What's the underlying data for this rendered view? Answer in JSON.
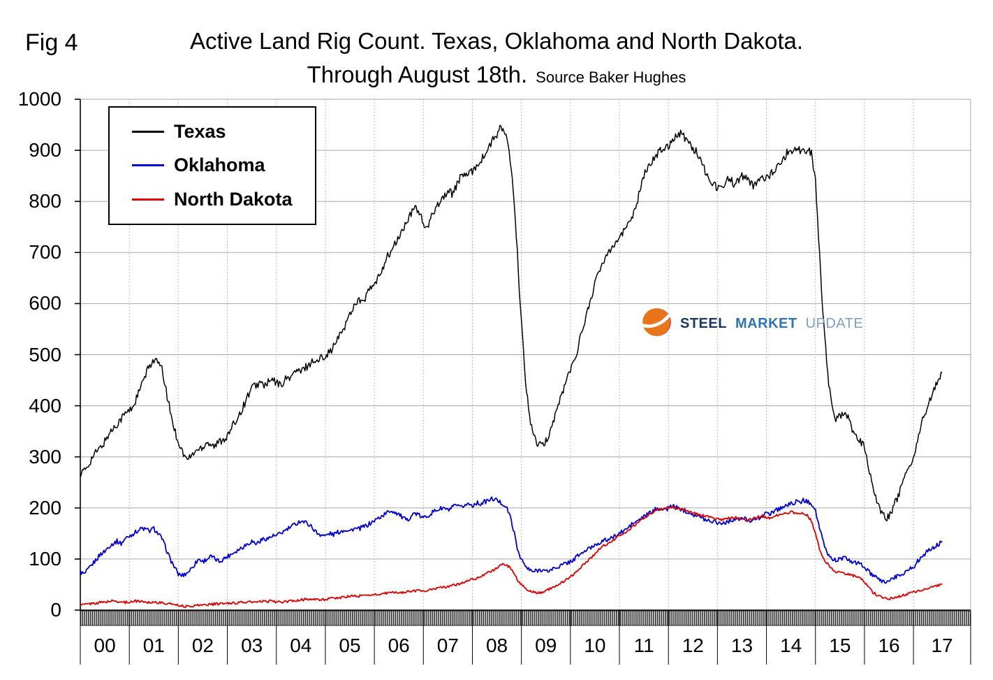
{
  "header": {
    "fig_label": "Fig 4",
    "title_line1": "Active Land Rig Count. Texas, Oklahoma and North Dakota.",
    "title_line2": "Through August 18th.",
    "source": "Source Baker Hughes"
  },
  "watermark": {
    "steel": "STEEL",
    "market": "MARKET",
    "update": "UPDATE",
    "colors": {
      "steel": "#17375E",
      "market": "#2E74B5",
      "update": "#7F9FC6",
      "icon_orange": "#E8751A",
      "icon_red": "#C0272D"
    }
  },
  "chart_data": {
    "type": "line",
    "title": "Active Land Rig Count. Texas, Oklahoma and North Dakota. Through August 18th.",
    "source": "Baker Hughes",
    "ylim": [
      0,
      1000
    ],
    "yticks": [
      0,
      100,
      200,
      300,
      400,
      500,
      600,
      700,
      800,
      900,
      1000
    ],
    "x_tick_labels": [
      "00",
      "01",
      "02",
      "03",
      "04",
      "05",
      "06",
      "07",
      "08",
      "09",
      "10",
      "11",
      "12",
      "13",
      "14",
      "15",
      "16",
      "17"
    ],
    "x_axis": {
      "start_month": "2000-01",
      "end_month": "2017-08",
      "frequency": "monthly",
      "n_points": 212,
      "axis_total_months": 218
    },
    "grid": {
      "horizontal": true,
      "vertical_dotted_per_year": true,
      "color": "#A8A8A8"
    },
    "legend": {
      "position": "top-left",
      "border": true
    },
    "series": [
      {
        "name": "Texas",
        "color": "#000000",
        "values": [
          268,
          272,
          285,
          300,
          310,
          318,
          330,
          345,
          355,
          365,
          375,
          385,
          390,
          400,
          420,
          440,
          460,
          480,
          490,
          485,
          470,
          430,
          390,
          355,
          330,
          310,
          295,
          300,
          310,
          315,
          320,
          330,
          325,
          320,
          330,
          335,
          340,
          355,
          370,
          385,
          400,
          420,
          435,
          440,
          445,
          440,
          445,
          450,
          445,
          440,
          450,
          455,
          460,
          470,
          465,
          475,
          480,
          490,
          485,
          495,
          500,
          505,
          515,
          530,
          545,
          560,
          580,
          595,
          610,
          600,
          615,
          630,
          635,
          650,
          670,
          690,
          700,
          715,
          730,
          745,
          760,
          775,
          790,
          780,
          755,
          745,
          770,
          790,
          800,
          810,
          820,
          815,
          830,
          845,
          855,
          850,
          860,
          870,
          880,
          890,
          905,
          920,
          930,
          945,
          935,
          900,
          820,
          700,
          560,
          450,
          380,
          340,
          325,
          320,
          330,
          350,
          375,
          400,
          425,
          450,
          470,
          490,
          520,
          550,
          580,
          610,
          640,
          660,
          680,
          700,
          710,
          720,
          730,
          740,
          755,
          770,
          790,
          820,
          850,
          870,
          880,
          890,
          900,
          905,
          910,
          920,
          930,
          935,
          925,
          915,
          905,
          895,
          880,
          860,
          845,
          835,
          825,
          830,
          840,
          845,
          835,
          840,
          850,
          845,
          835,
          830,
          840,
          850,
          845,
          855,
          860,
          870,
          880,
          895,
          900,
          905,
          900,
          905,
          900,
          895,
          840,
          700,
          560,
          460,
          400,
          375,
          380,
          390,
          375,
          355,
          340,
          330,
          320,
          280,
          245,
          215,
          195,
          180,
          185,
          200,
          220,
          240,
          260,
          280,
          300,
          330,
          365,
          390,
          410,
          430,
          450,
          465
        ]
      },
      {
        "name": "Oklahoma",
        "color": "#0000D0",
        "values": [
          75,
          70,
          80,
          90,
          100,
          110,
          115,
          125,
          130,
          135,
          130,
          140,
          145,
          150,
          155,
          160,
          158,
          155,
          160,
          150,
          140,
          120,
          100,
          85,
          70,
          68,
          72,
          80,
          90,
          100,
          95,
          100,
          105,
          100,
          95,
          100,
          105,
          110,
          115,
          120,
          125,
          130,
          135,
          130,
          135,
          140,
          140,
          145,
          145,
          150,
          155,
          160,
          165,
          170,
          175,
          172,
          168,
          160,
          150,
          148,
          145,
          150,
          148,
          152,
          155,
          158,
          155,
          160,
          158,
          162,
          165,
          170,
          175,
          180,
          185,
          190,
          195,
          192,
          188,
          180,
          175,
          185,
          190,
          185,
          180,
          185,
          190,
          195,
          198,
          200,
          195,
          200,
          205,
          200,
          205,
          208,
          205,
          210,
          208,
          212,
          215,
          218,
          215,
          210,
          205,
          190,
          160,
          120,
          100,
          85,
          78,
          75,
          78,
          80,
          75,
          78,
          82,
          85,
          88,
          92,
          95,
          100,
          108,
          112,
          118,
          122,
          128,
          132,
          135,
          138,
          140,
          145,
          150,
          155,
          160,
          168,
          172,
          178,
          182,
          188,
          192,
          198,
          200,
          195,
          200,
          205,
          200,
          198,
          195,
          192,
          188,
          185,
          180,
          178,
          175,
          175,
          172,
          170,
          172,
          175,
          178,
          176,
          180,
          178,
          176,
          178,
          180,
          185,
          188,
          190,
          195,
          198,
          202,
          205,
          208,
          212,
          210,
          215,
          212,
          210,
          195,
          160,
          130,
          110,
          100,
          98,
          100,
          102,
          98,
          95,
          92,
          90,
          85,
          75,
          68,
          62,
          58,
          55,
          58,
          62,
          66,
          70,
          75,
          80,
          85,
          95,
          105,
          112,
          118,
          122,
          128,
          135
        ]
      },
      {
        "name": "North Dakota",
        "color": "#DC0000",
        "values": [
          10,
          11,
          12,
          13,
          14,
          15,
          16,
          17,
          18,
          17,
          16,
          15,
          16,
          17,
          18,
          17,
          16,
          15,
          16,
          15,
          14,
          13,
          12,
          12,
          10,
          8,
          7,
          8,
          9,
          10,
          10,
          11,
          11,
          12,
          12,
          13,
          13,
          14,
          14,
          15,
          15,
          16,
          16,
          15,
          16,
          17,
          17,
          18,
          16,
          15,
          16,
          17,
          18,
          19,
          20,
          21,
          22,
          21,
          20,
          21,
          21,
          22,
          23,
          24,
          25,
          26,
          27,
          28,
          27,
          28,
          29,
          30,
          30,
          31,
          32,
          33,
          34,
          35,
          34,
          35,
          36,
          37,
          38,
          38,
          38,
          39,
          40,
          42,
          44,
          45,
          46,
          48,
          50,
          52,
          55,
          58,
          60,
          63,
          66,
          70,
          74,
          78,
          82,
          88,
          90,
          85,
          75,
          60,
          50,
          42,
          38,
          35,
          33,
          35,
          38,
          42,
          46,
          50,
          55,
          60,
          65,
          72,
          80,
          88,
          95,
          102,
          110,
          118,
          125,
          130,
          135,
          140,
          145,
          150,
          155,
          162,
          168,
          175,
          180,
          185,
          190,
          195,
          198,
          200,
          200,
          202,
          200,
          198,
          195,
          192,
          190,
          188,
          186,
          184,
          182,
          180,
          178,
          176,
          178,
          180,
          182,
          180,
          178,
          176,
          178,
          180,
          182,
          184,
          182,
          180,
          184,
          186,
          188,
          190,
          192,
          190,
          188,
          190,
          185,
          175,
          150,
          120,
          100,
          90,
          82,
          76,
          74,
          72,
          70,
          68,
          66,
          64,
          55,
          45,
          35,
          30,
          26,
          24,
          22,
          24,
          26,
          28,
          30,
          33,
          35,
          38,
          40,
          42,
          44,
          46,
          48,
          50
        ]
      }
    ]
  }
}
